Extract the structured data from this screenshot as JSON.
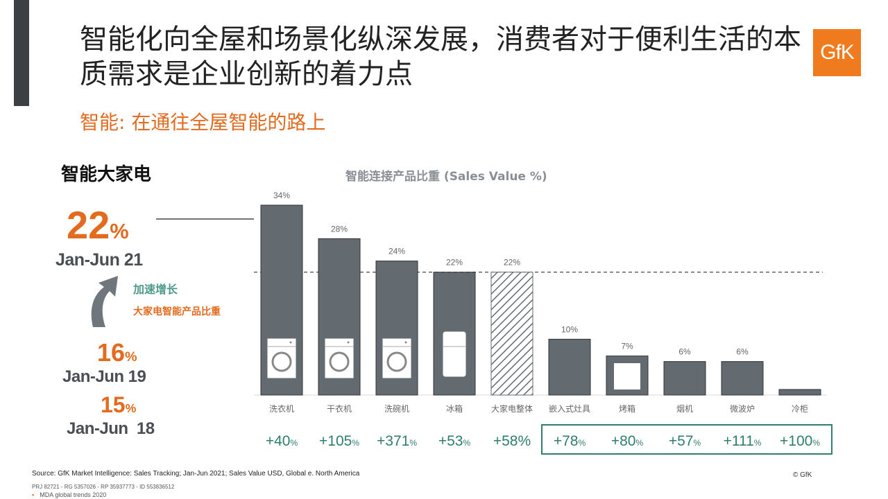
{
  "title": "智能化向全屋和场景化纵深发展，消费者对于便利生活的本质需求是企业创新的着力点",
  "subtitle": "智能: 在通往全屋智能的路上",
  "logo_text": "GfK",
  "section_title": "智能大家电",
  "kpis": [
    {
      "value": "22",
      "unit": "%",
      "period": "Jan-Jun 21"
    },
    {
      "value": "16",
      "unit": "%",
      "period": "Jan-Jun 19"
    },
    {
      "value": "15",
      "unit": "%",
      "period": "Jan-Jun  18"
    }
  ],
  "growth_label": "加速增长",
  "growth_desc": "大家电智能产品比重",
  "colors": {
    "accent": "#e36b1f",
    "bar": "#636b70",
    "teal": "#2e7d6e",
    "dark": "#3c4043"
  },
  "chart_data": {
    "type": "bar",
    "title": "智能连接产品比重 (Sales Value %)",
    "categories": [
      "洗衣机",
      "干衣机",
      "洗碗机",
      "冰箱",
      "大家电整体",
      "嵌入式灶具",
      "烤箱",
      "烟机",
      "微波炉",
      "冷柜"
    ],
    "values": [
      34,
      28,
      24,
      22,
      22,
      10,
      7,
      6,
      6,
      1
    ],
    "value_labels": [
      "34%",
      "28%",
      "24%",
      "22%",
      "22%",
      "10%",
      "7%",
      "6%",
      "6%",
      ""
    ],
    "growth_labels": [
      "+40",
      "+105",
      "+371",
      "+53",
      "+58%",
      "+78",
      "+80",
      "+57",
      "+111",
      "+100"
    ],
    "growth_units": [
      "%",
      "%",
      "%",
      "%",
      "",
      "%",
      "%",
      "%",
      "%",
      "%"
    ],
    "highlight_category": "大家电整体",
    "reference_line_value": 22,
    "icons": [
      "washer-icon",
      "dryer-icon",
      "dishwasher-icon",
      "fridge-icon",
      "",
      "",
      "oven-icon",
      "",
      "",
      ""
    ],
    "ylim": [
      0,
      36
    ]
  },
  "footer": {
    "source": "Source: GfK Market Intelligence: Sales Tracking; Jan-Jun 2021;  Sales Value USD, Global e. North America",
    "project": "PRJ 82721 - RG 5357026 - RP 35937773 - ID 553836512",
    "note": "MDA global trends 2020",
    "bullet": "▪",
    "copyright": "© GfK"
  }
}
